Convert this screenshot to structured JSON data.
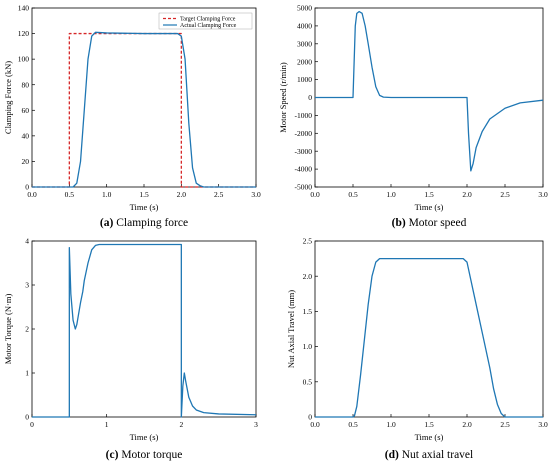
{
  "chart_data": [
    {
      "type": "line",
      "id": "a",
      "caption_tag": "(a)",
      "caption_title": "Clamping force",
      "xlabel": "Time (s)",
      "ylabel": "Clamping Force (kN)",
      "xlim": [
        0,
        3
      ],
      "ylim": [
        0,
        140
      ],
      "xticks": [
        0.0,
        0.5,
        1.0,
        1.5,
        2.0,
        2.5,
        3.0
      ],
      "xtick_labels": [
        "0.0",
        "0.5",
        "1.0",
        "1.5",
        "2.0",
        "2.5",
        "3.0"
      ],
      "yticks": [
        0,
        20,
        40,
        60,
        80,
        100,
        120,
        140
      ],
      "ytick_labels": [
        "0",
        "20",
        "40",
        "60",
        "80",
        "100",
        "120",
        "140"
      ],
      "grid": false,
      "legend": "top-right",
      "series": [
        {
          "name": "Target Clamping Force",
          "color": "#d62728",
          "dash": "3,2",
          "x": [
            0,
            0.5,
            0.5,
            2.0,
            2.0,
            3.0
          ],
          "y": [
            0,
            0,
            120,
            120,
            0,
            0
          ]
        },
        {
          "name": "Actual Clamping Force",
          "color": "#1f77b4",
          "x": [
            0,
            0.55,
            0.6,
            0.65,
            0.7,
            0.75,
            0.8,
            0.85,
            1.0,
            1.5,
            1.95,
            2.0,
            2.05,
            2.1,
            2.15,
            2.2,
            2.25,
            2.3,
            3.0
          ],
          "y": [
            0,
            0,
            3,
            20,
            60,
            100,
            118,
            121,
            120.5,
            120,
            120,
            118,
            100,
            50,
            15,
            3,
            1,
            0,
            0
          ]
        }
      ]
    },
    {
      "type": "line",
      "id": "b",
      "caption_tag": "(b)",
      "caption_title": "Motor speed",
      "xlabel": "Time (s)",
      "ylabel": "Motor Speed (r/min)",
      "xlim": [
        0,
        3
      ],
      "ylim": [
        -5000,
        5000
      ],
      "xticks": [
        0.0,
        0.5,
        1.0,
        1.5,
        2.0,
        2.5,
        3.0
      ],
      "xtick_labels": [
        "0.0",
        "0.5",
        "1.0",
        "1.5",
        "2.0",
        "2.5",
        "3.0"
      ],
      "yticks": [
        -5000,
        -4000,
        -3000,
        -2000,
        -1000,
        0,
        1000,
        2000,
        3000,
        4000,
        5000
      ],
      "ytick_labels": [
        "-5000",
        "-4000",
        "-3000",
        "-2000",
        "-1000",
        "0",
        "1000",
        "2000",
        "3000",
        "4000",
        "5000"
      ],
      "grid": false,
      "series": [
        {
          "color": "#1f77b4",
          "x": [
            0,
            0.5,
            0.53,
            0.55,
            0.58,
            0.62,
            0.66,
            0.7,
            0.75,
            0.8,
            0.85,
            0.9,
            1.0,
            2.0,
            2.02,
            2.05,
            2.08,
            2.12,
            2.2,
            2.3,
            2.5,
            2.7,
            3.0
          ],
          "y": [
            0,
            0,
            4000,
            4700,
            4800,
            4700,
            4000,
            3000,
            1700,
            600,
            120,
            20,
            0,
            0,
            -2000,
            -4100,
            -3700,
            -2800,
            -1900,
            -1200,
            -600,
            -300,
            -150
          ]
        }
      ]
    },
    {
      "type": "line",
      "id": "c",
      "caption_tag": "(c)",
      "caption_title": "Motor torque",
      "xlabel": "Time (s)",
      "ylabel": "Motor Torque (N·m)",
      "xlim": [
        0,
        3
      ],
      "ylim": [
        0,
        4
      ],
      "xticks": [
        0,
        1,
        2,
        3
      ],
      "xtick_labels": [
        "0",
        "1",
        "2",
        "3"
      ],
      "yticks": [
        0,
        1,
        2,
        3,
        4
      ],
      "ytick_labels": [
        "0",
        "1",
        "2",
        "3",
        "4"
      ],
      "grid": false,
      "series": [
        {
          "color": "#1f77b4",
          "x": [
            0,
            0.5,
            0.5,
            0.52,
            0.55,
            0.58,
            0.6,
            0.62,
            0.65,
            0.68,
            0.7,
            0.75,
            0.8,
            0.85,
            0.9,
            1.0,
            1.5,
            2.0,
            2.0,
            2.02,
            2.04,
            2.06,
            2.1,
            2.15,
            2.2,
            2.3,
            2.5,
            3.0
          ],
          "y": [
            0,
            0,
            3.85,
            2.8,
            2.2,
            2.0,
            2.1,
            2.3,
            2.6,
            2.85,
            3.1,
            3.5,
            3.8,
            3.9,
            3.92,
            3.92,
            3.92,
            3.92,
            0,
            0.7,
            1.0,
            0.8,
            0.45,
            0.25,
            0.16,
            0.1,
            0.07,
            0.05
          ]
        }
      ]
    },
    {
      "type": "line",
      "id": "d",
      "caption_tag": "(d)",
      "caption_title": "Nut axial travel",
      "xlabel": "Time (s)",
      "ylabel": "Nut Axial Travel (mm)",
      "xlim": [
        0,
        3
      ],
      "ylim": [
        0,
        2.5
      ],
      "xticks": [
        0.0,
        0.5,
        1.0,
        1.5,
        2.0,
        2.5,
        3.0
      ],
      "xtick_labels": [
        "0.0",
        "0.5",
        "1.0",
        "1.5",
        "2.0",
        "2.5",
        "3.0"
      ],
      "yticks": [
        0,
        0.5,
        1.0,
        1.5,
        2.0,
        2.5
      ],
      "ytick_labels": [
        "0",
        "0.5",
        "1.0",
        "1.5",
        "2.0",
        "2.5"
      ],
      "grid": false,
      "series": [
        {
          "color": "#1f77b4",
          "x": [
            0,
            0.5,
            0.52,
            0.55,
            0.6,
            0.65,
            0.7,
            0.75,
            0.8,
            0.85,
            0.9,
            1.0,
            1.5,
            1.95,
            2.0,
            2.05,
            2.1,
            2.2,
            2.3,
            2.35,
            2.4,
            2.45,
            2.5,
            3.0
          ],
          "y": [
            0,
            0,
            0.02,
            0.15,
            0.6,
            1.1,
            1.6,
            2.0,
            2.2,
            2.25,
            2.25,
            2.25,
            2.25,
            2.25,
            2.2,
            1.95,
            1.7,
            1.2,
            0.7,
            0.4,
            0.18,
            0.05,
            0,
            0
          ]
        }
      ]
    }
  ]
}
